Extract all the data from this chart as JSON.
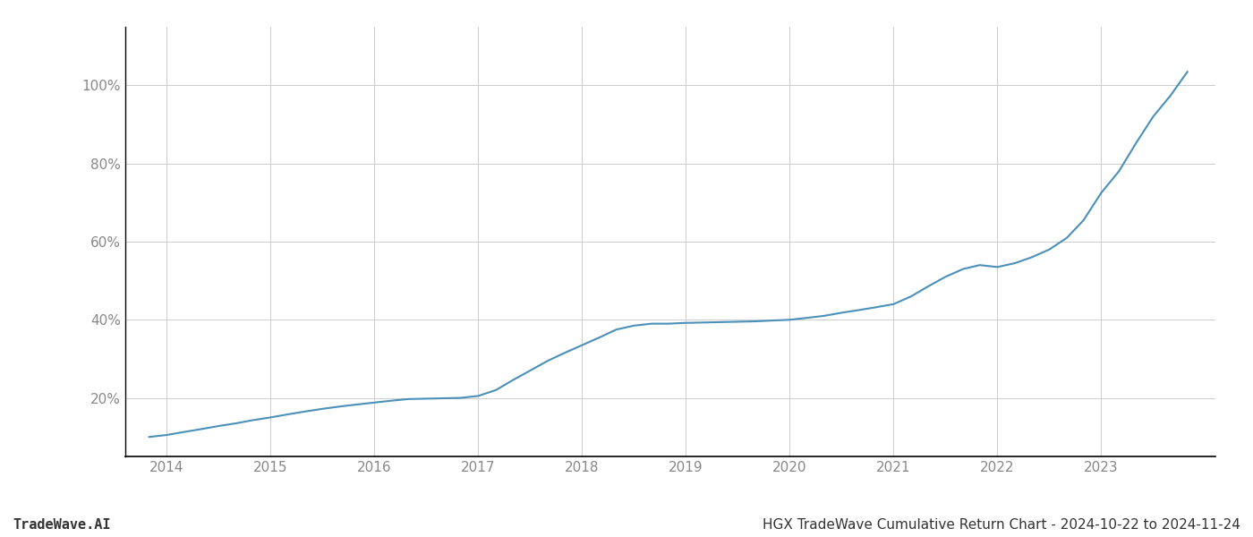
{
  "title": "HGX TradeWave Cumulative Return Chart - 2024-10-22 to 2024-11-24",
  "watermark": "TradeWave.AI",
  "line_color": "#4a90b8",
  "background_color": "#ffffff",
  "grid_color": "#cccccc",
  "x_years": [
    2014,
    2015,
    2016,
    2017,
    2018,
    2019,
    2020,
    2021,
    2022,
    2023
  ],
  "x_values": [
    2013.83,
    2014.0,
    2014.15,
    2014.33,
    2014.5,
    2014.67,
    2014.83,
    2015.0,
    2015.17,
    2015.33,
    2015.5,
    2015.67,
    2015.83,
    2016.0,
    2016.17,
    2016.33,
    2016.5,
    2016.67,
    2016.83,
    2017.0,
    2017.17,
    2017.33,
    2017.5,
    2017.67,
    2017.83,
    2018.0,
    2018.17,
    2018.33,
    2018.5,
    2018.67,
    2018.83,
    2019.0,
    2019.17,
    2019.33,
    2019.5,
    2019.67,
    2019.83,
    2020.0,
    2020.17,
    2020.33,
    2020.5,
    2020.67,
    2020.83,
    2021.0,
    2021.17,
    2021.33,
    2021.5,
    2021.67,
    2021.83,
    2022.0,
    2022.17,
    2022.33,
    2022.5,
    2022.67,
    2022.83,
    2023.0,
    2023.17,
    2023.33,
    2023.5,
    2023.67,
    2023.83
  ],
  "y_values": [
    10.0,
    10.5,
    11.2,
    12.0,
    12.8,
    13.5,
    14.3,
    15.0,
    15.8,
    16.5,
    17.2,
    17.8,
    18.3,
    18.8,
    19.3,
    19.7,
    19.8,
    19.9,
    20.0,
    20.5,
    22.0,
    24.5,
    27.0,
    29.5,
    31.5,
    33.5,
    35.5,
    37.5,
    38.5,
    39.0,
    39.0,
    39.2,
    39.3,
    39.4,
    39.5,
    39.6,
    39.8,
    40.0,
    40.5,
    41.0,
    41.8,
    42.5,
    43.2,
    44.0,
    46.0,
    48.5,
    51.0,
    53.0,
    54.0,
    53.5,
    54.5,
    56.0,
    58.0,
    61.0,
    65.5,
    72.5,
    78.0,
    85.0,
    92.0,
    97.5,
    103.5
  ],
  "ylim": [
    5,
    115
  ],
  "xlim": [
    2013.6,
    2024.1
  ],
  "yticks": [
    20,
    40,
    60,
    80,
    100
  ],
  "ytick_labels": [
    "20%",
    "40%",
    "60%",
    "80%",
    "100%"
  ],
  "title_fontsize": 11,
  "watermark_fontsize": 11,
  "axis_label_fontsize": 11,
  "line_width": 1.5,
  "spine_color": "#000000",
  "tick_label_color": "#888888",
  "text_color": "#333333"
}
